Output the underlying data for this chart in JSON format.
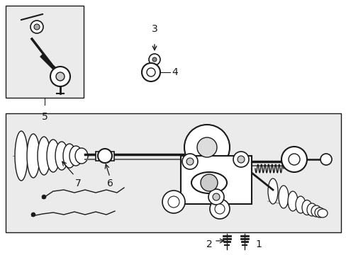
{
  "bg_color": "#ffffff",
  "fig_width": 4.89,
  "fig_height": 3.6,
  "dpi": 100,
  "box_bg": "#e8e8e8",
  "line_color": "#1a1a1a",
  "font_size": 9
}
